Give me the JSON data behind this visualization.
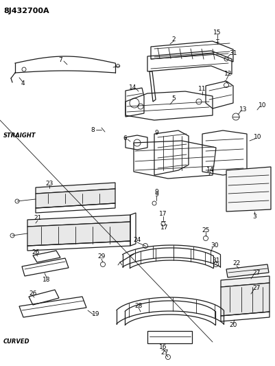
{
  "title": "8J432700A",
  "bg_color": "#ffffff",
  "line_color": "#1a1a1a",
  "label_straight": "STRAIGHT",
  "label_curved": "CURVED",
  "figw": 4.01,
  "figh": 5.33,
  "dpi": 100
}
